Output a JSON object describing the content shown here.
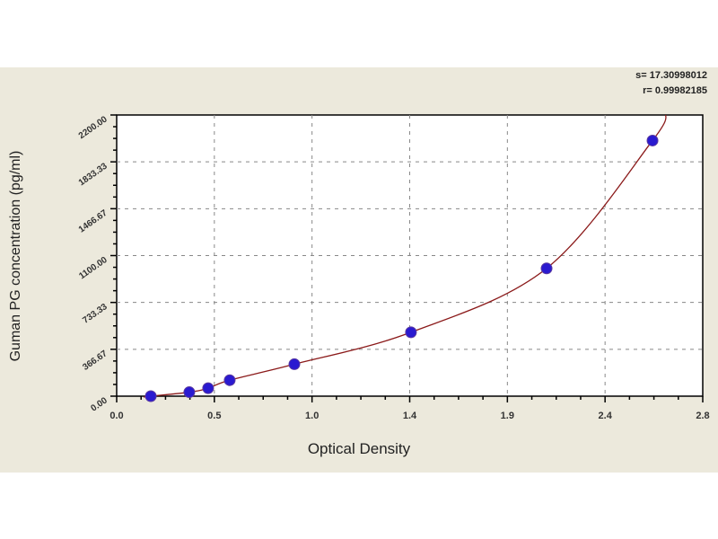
{
  "chart_data": {
    "type": "scatter",
    "title": "",
    "xlabel": "Optical Density",
    "ylabel": "Guman PG concentration (pg/ml)",
    "xlim": [
      0,
      2.8
    ],
    "ylim": [
      0,
      2200
    ],
    "x_tick_labels": [
      "0.0",
      "0.5",
      "1.0",
      "1.4",
      "1.9",
      "2.4",
      "2.8"
    ],
    "y_tick_labels": [
      "0.00",
      "366.67",
      "733.33",
      "1100.00",
      "1466.67",
      "1833.33",
      "2200.00"
    ],
    "grid": true,
    "points": {
      "x": [
        0.163,
        0.347,
        0.437,
        0.54,
        0.849,
        1.406,
        2.054,
        2.56
      ],
      "y": [
        0,
        31.25,
        62.5,
        125,
        250,
        500,
        1000,
        2000
      ]
    },
    "fit_curve": {
      "name": "fit",
      "color": "#8b1a1a"
    },
    "stats": {
      "s": "s= 17.30998012",
      "r": "r= 0.99982185"
    },
    "colors": {
      "points": "#2a1ad0",
      "background": "#ece9dc",
      "plot": "#ffffff"
    }
  }
}
